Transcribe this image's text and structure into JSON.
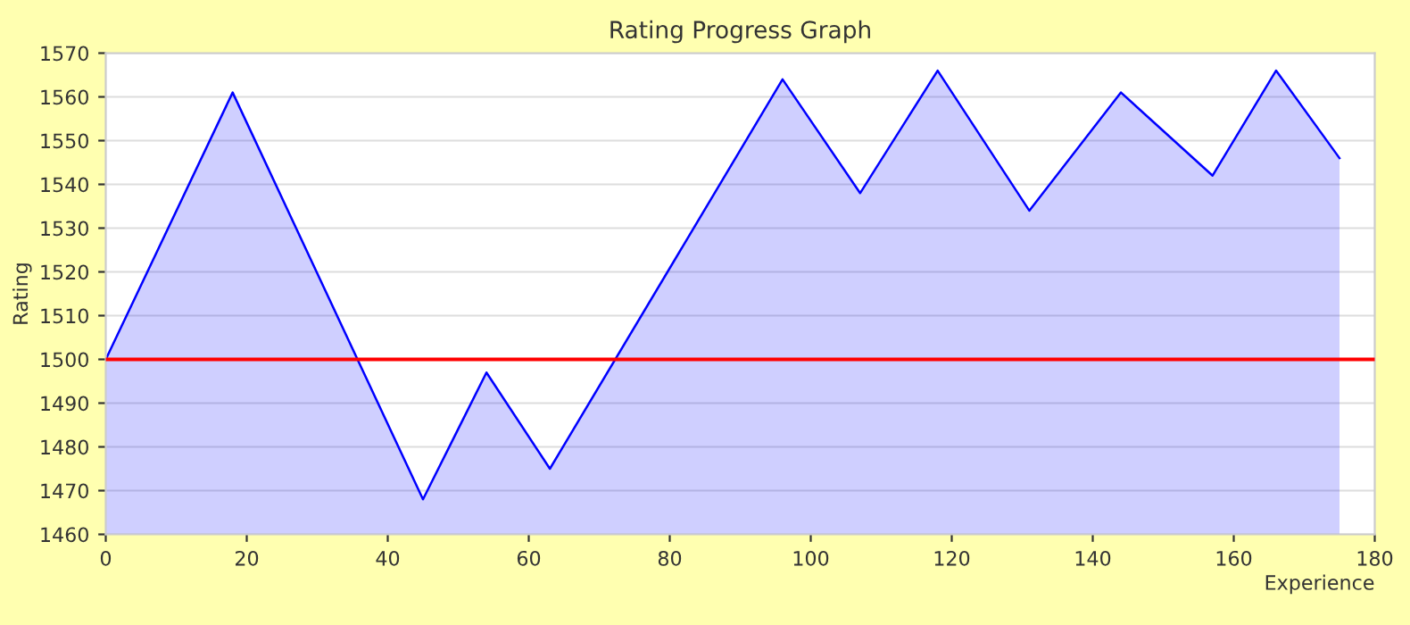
{
  "chart_data": {
    "type": "area",
    "title": "Rating Progress Graph",
    "xlabel": "Experience",
    "ylabel": "Rating",
    "x": [
      0,
      18,
      45,
      54,
      63,
      96,
      107,
      118,
      131,
      144,
      157,
      166,
      175
    ],
    "series": [
      {
        "color": "#0000ff",
        "values": [
          1500,
          1561,
          1468,
          1497,
          1475,
          1564,
          1538,
          1566,
          1534,
          1561,
          1542,
          1566,
          1546
        ]
      }
    ],
    "xlim": [
      0,
      180
    ],
    "xticks": [
      0,
      20,
      40,
      60,
      80,
      100,
      120,
      140,
      160,
      180
    ],
    "ylim": [
      1460,
      1570
    ],
    "yticks": [
      1460,
      1470,
      1480,
      1490,
      1500,
      1510,
      1520,
      1530,
      1540,
      1550,
      1560,
      1570
    ],
    "ref_lines": [
      {
        "axis": "y",
        "value": 1500,
        "color": "#ff0000"
      }
    ],
    "grid": "y"
  }
}
